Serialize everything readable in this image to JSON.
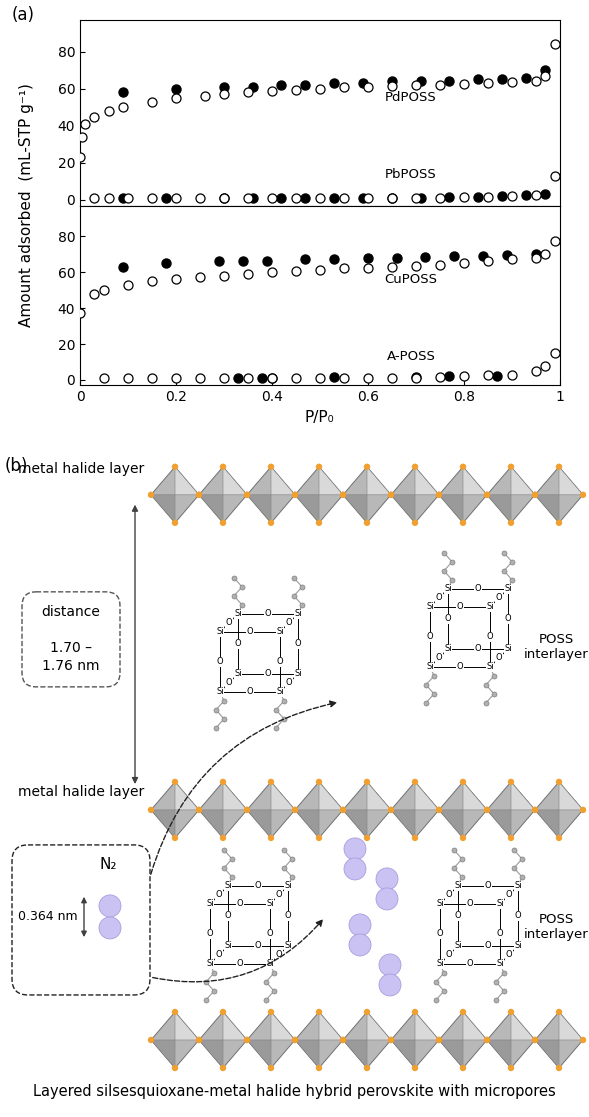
{
  "figure": {
    "panel_a_label": "(a)",
    "panel_b_label": "(b)",
    "ylabel": "Amount adsorbed  (mL-STP g⁻¹)"
  },
  "chart_data": [
    {
      "type": "scatter",
      "xlim": [
        0,
        1
      ],
      "ylim": [
        -3,
        97
      ],
      "xticks": [
        0,
        0.2,
        0.4,
        0.6,
        0.8,
        1
      ],
      "yticks": [
        0,
        20,
        40,
        60,
        80
      ],
      "tick_labels": "y",
      "marker": "circle",
      "series": [
        {
          "name": "PdPOSS",
          "color": "#000000",
          "adsorption": {
            "x": [
              0.0,
              0.003,
              0.01,
              0.03,
              0.06,
              0.09,
              0.15,
              0.2,
              0.26,
              0.3,
              0.35,
              0.4,
              0.45,
              0.5,
              0.55,
              0.6,
              0.65,
              0.7,
              0.75,
              0.8,
              0.85,
              0.9,
              0.95,
              0.97,
              0.99
            ],
            "y": [
              23,
              34,
              41,
              45,
              48,
              50,
              53,
              55,
              56,
              57,
              58,
              59,
              59.5,
              60,
              61,
              61,
              61.5,
              62,
              62,
              62.5,
              63,
              63.5,
              64,
              67,
              84
            ]
          },
          "desorption": {
            "x": [
              0.09,
              0.2,
              0.3,
              0.36,
              0.42,
              0.47,
              0.53,
              0.59,
              0.65,
              0.71,
              0.77,
              0.83,
              0.88,
              0.93,
              0.97
            ],
            "y": [
              58,
              60,
              61,
              61,
              62,
              62,
              63,
              63,
              64,
              64,
              64,
              65,
              65,
              66,
              70
            ]
          }
        },
        {
          "name": "PbPOSS",
          "color": "#000000",
          "adsorption": {
            "x": [
              0.03,
              0.06,
              0.1,
              0.15,
              0.2,
              0.25,
              0.3,
              0.35,
              0.4,
              0.45,
              0.5,
              0.55,
              0.6,
              0.65,
              0.7,
              0.75,
              0.8,
              0.85,
              0.9,
              0.95,
              0.99
            ],
            "y": [
              1,
              1,
              1,
              1,
              1,
              1,
              1,
              1,
              1,
              1,
              1,
              1,
              1,
              1,
              1,
              1,
              1.5,
              1.5,
              2,
              2.5,
              13
            ]
          },
          "desorption": {
            "x": [
              0.09,
              0.18,
              0.3,
              0.36,
              0.42,
              0.47,
              0.53,
              0.59,
              0.65,
              0.71,
              0.77,
              0.83,
              0.88,
              0.93,
              0.97
            ],
            "y": [
              1,
              1,
              1,
              1,
              1,
              1,
              1,
              1,
              1,
              1,
              1.5,
              1.5,
              2,
              2.5,
              3
            ]
          }
        }
      ]
    },
    {
      "type": "scatter",
      "xlim": [
        0,
        1
      ],
      "ylim": [
        -3,
        97
      ],
      "xticks": [
        0,
        0.2,
        0.4,
        0.6,
        0.8,
        1
      ],
      "yticks": [
        0,
        20,
        40,
        60,
        80
      ],
      "xlabel": "P/P₀",
      "marker": "circle",
      "series": [
        {
          "name": "CuPOSS",
          "color": "#000000",
          "adsorption": {
            "x": [
              0.0,
              0.03,
              0.05,
              0.1,
              0.15,
              0.2,
              0.25,
              0.3,
              0.35,
              0.4,
              0.45,
              0.5,
              0.55,
              0.6,
              0.65,
              0.7,
              0.75,
              0.8,
              0.85,
              0.9,
              0.95,
              0.97,
              0.99
            ],
            "y": [
              37,
              48,
              50,
              53,
              55,
              56,
              57,
              58,
              59,
              60,
              60.5,
              61,
              62,
              62.5,
              63,
              63.5,
              64,
              65,
              66,
              67,
              68,
              70,
              77
            ]
          },
          "desorption": {
            "x": [
              0.09,
              0.18,
              0.29,
              0.34,
              0.39,
              0.47,
              0.53,
              0.6,
              0.66,
              0.72,
              0.78,
              0.84,
              0.89,
              0.95
            ],
            "y": [
              63,
              65,
              66,
              66,
              66,
              67,
              67,
              68,
              68,
              68.5,
              69,
              69,
              69.5,
              70
            ]
          }
        },
        {
          "name": "A-POSS",
          "color": "#000000",
          "adsorption": {
            "x": [
              0.05,
              0.1,
              0.15,
              0.2,
              0.25,
              0.3,
              0.35,
              0.4,
              0.45,
              0.5,
              0.55,
              0.6,
              0.65,
              0.7,
              0.75,
              0.8,
              0.85,
              0.9,
              0.95,
              0.97,
              0.99
            ],
            "y": [
              1,
              1,
              1,
              1,
              1,
              1,
              1,
              1,
              1,
              1,
              1,
              1,
              1,
              1,
              1.5,
              2,
              2.5,
              3,
              5,
              8,
              15
            ]
          },
          "desorption": {
            "x": [
              0.33,
              0.38,
              0.4,
              0.53,
              0.7,
              0.77,
              0.87
            ],
            "y": [
              1,
              1,
              1,
              1.5,
              1.5,
              2,
              2
            ]
          }
        }
      ]
    }
  ],
  "diagram": {
    "metal_halide_layer": "metal halide layer",
    "distance_label": "distance",
    "distance_value": "1.70 – 1.76 nm",
    "interlayer_label": "POSS interlayer",
    "molecule": "N₂",
    "molecule_size": "0.364 nm",
    "cage_atoms": {
      "silicon": "Si",
      "oxygen": "O"
    },
    "caption": "Layered silsesquioxane-metal halide hybrid perovskite with micropores"
  }
}
